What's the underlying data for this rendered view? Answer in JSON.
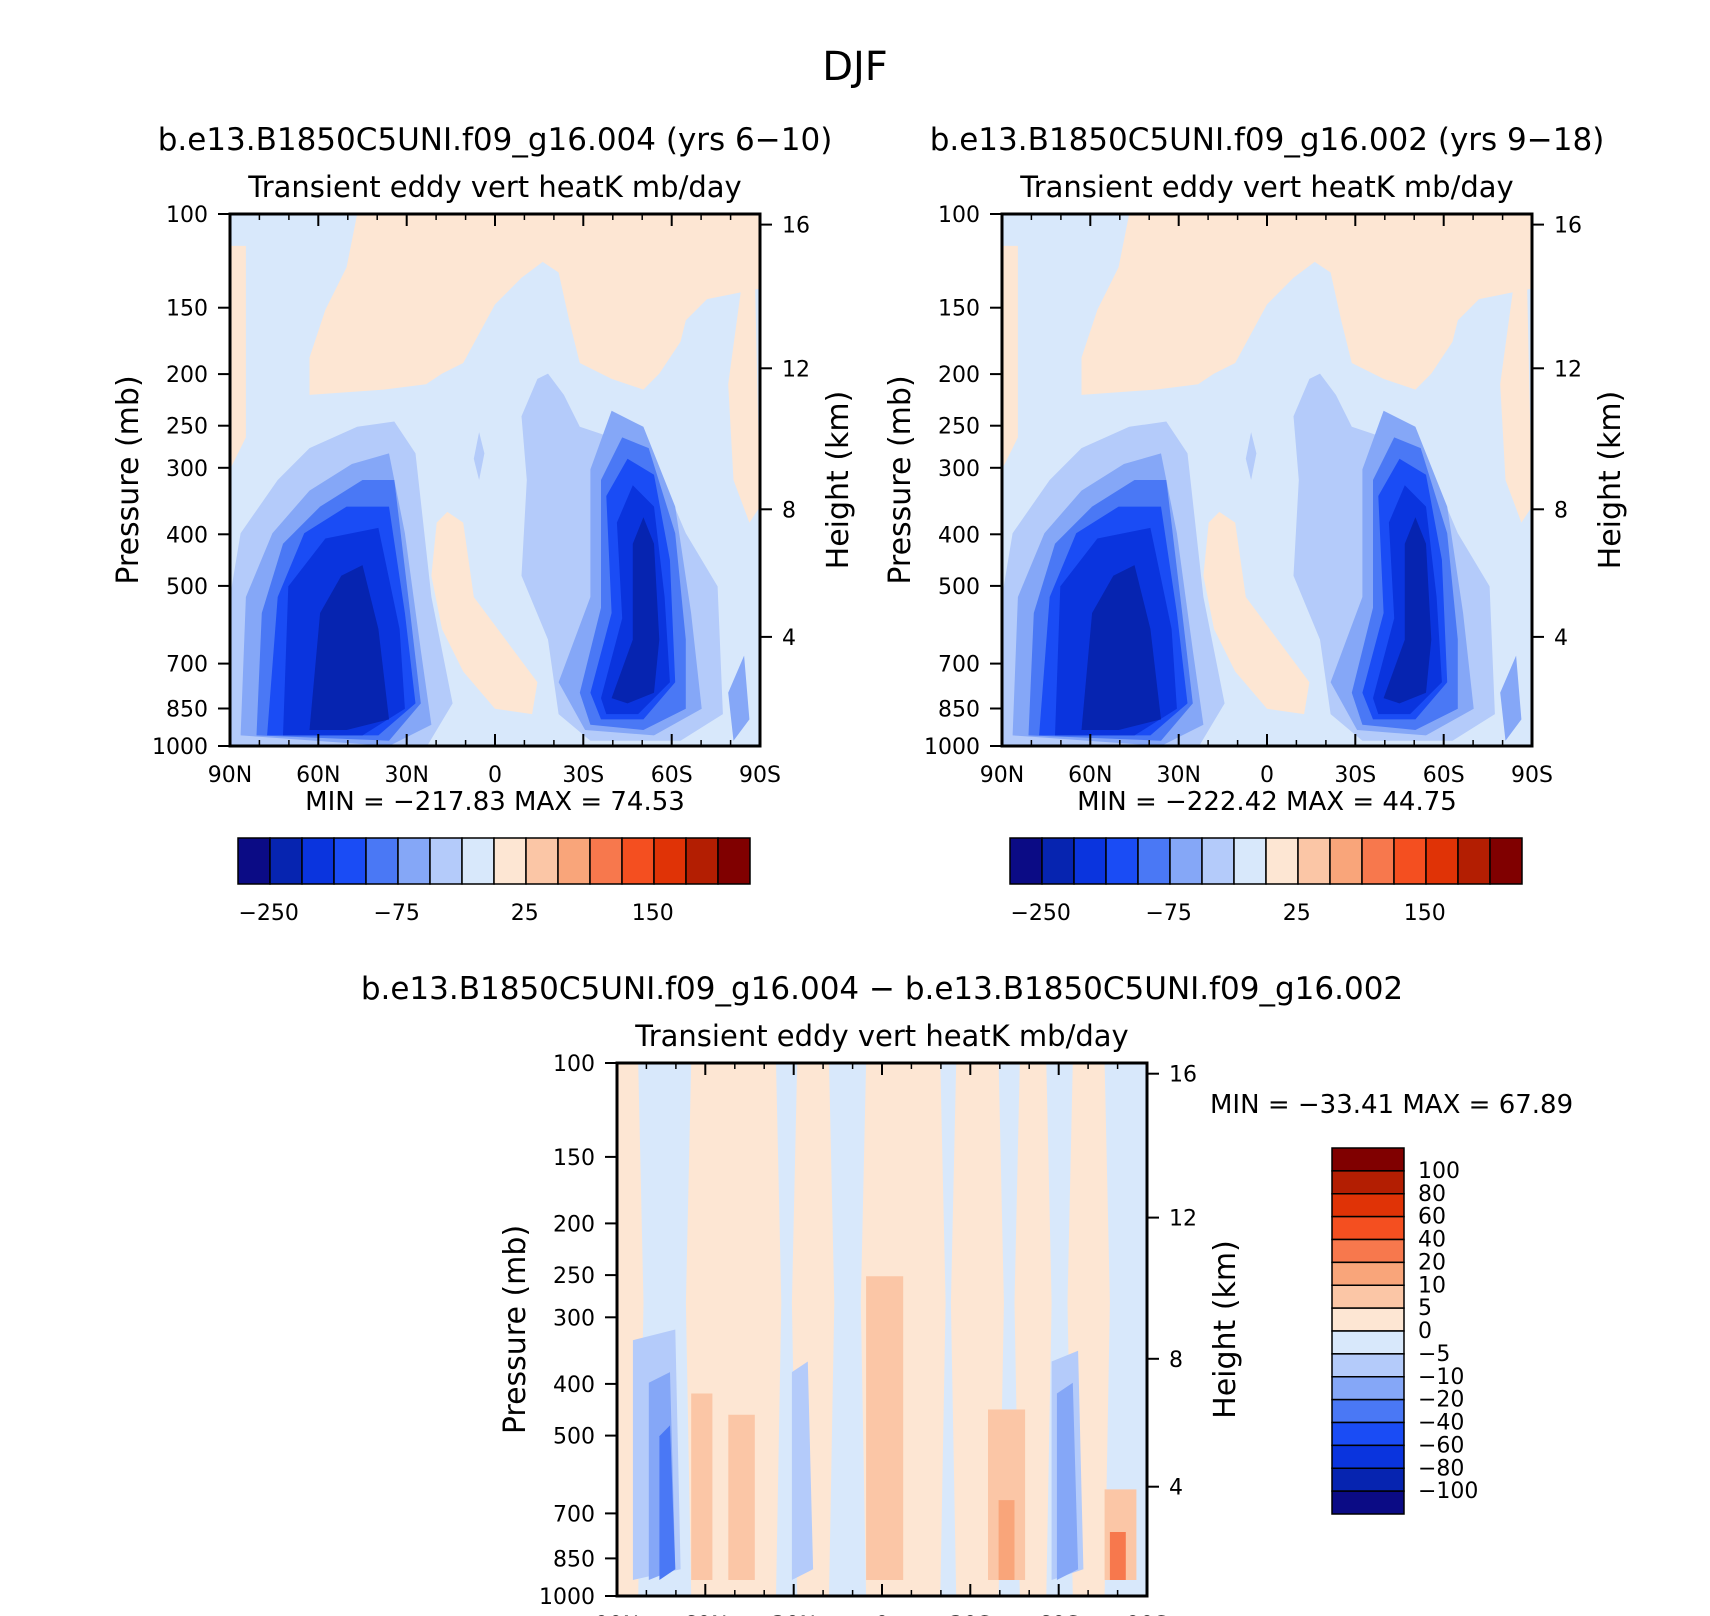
{
  "figure_title": "DJF",
  "colors": {
    "neg": [
      "#0b0b85",
      "#0624b0",
      "#0a34de",
      "#1a4cf5",
      "#4a78f5",
      "#85a7f7",
      "#b4cbfa",
      "#d8e8fb"
    ],
    "pos": [
      "#fde6d3",
      "#fbc6a6",
      "#f9a57a",
      "#f7784d",
      "#f44f20",
      "#e03306",
      "#b31e02",
      "#800000"
    ]
  },
  "panels": [
    {
      "id": "p1",
      "case": "b.e13.B1850C5UNI.f09_g16.004 (yrs 6−10)",
      "variable": "Transient eddy vert heatK mb/day",
      "min_label": "MIN = −217.83",
      "max_label": "MAX =  74.53"
    },
    {
      "id": "p2",
      "case": "b.e13.B1850C5UNI.f09_g16.002 (yrs 9−18)",
      "variable": "Transient eddy vert heatK mb/day",
      "min_label": "MIN = −222.42",
      "max_label": "MAX =  44.75"
    },
    {
      "id": "p3",
      "case": "b.e13.B1850C5UNI.f09_g16.004 − b.e13.B1850C5UNI.f09_g16.002",
      "variable": "Transient eddy vert heatK mb/day",
      "min_label": "MIN = −33.41",
      "max_label": "MAX =  67.89"
    }
  ],
  "chart_data": {
    "type": "heatmap",
    "xlabels": [
      "90N",
      "60N",
      "30N",
      "0",
      "30S",
      "60S",
      "90S"
    ],
    "ylabel_left": "Pressure (mb)",
    "ylabel_right": "Height (km)",
    "pressure_ticks": [
      "100",
      "150",
      "200",
      "250",
      "300",
      "400",
      "500",
      "700",
      "850",
      "1000"
    ],
    "height_ticks": [
      "16",
      "12",
      "8",
      "4"
    ],
    "colorbar_top": [
      "−250",
      "−75",
      "25",
      "150"
    ],
    "colorbar_diff": [
      "100",
      "80",
      "60",
      "40",
      "20",
      "10",
      "5",
      "0",
      "−5",
      "−10",
      "−20",
      "−40",
      "−60",
      "−80",
      "−100"
    ]
  }
}
